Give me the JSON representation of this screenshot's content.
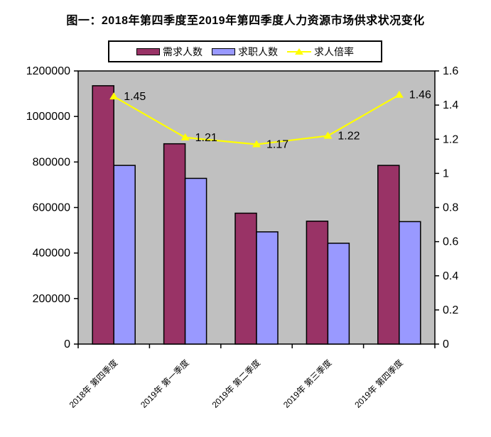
{
  "title": "图一：2018年第四季度至2019年第四季度人力资源市场供求状况变化",
  "chart_data": {
    "type": "bar",
    "combo": "bar+line",
    "title": "图一：2018年第四季度至2019年第四季度人力资源市场供求状况变化",
    "categories": [
      "2018年 第四季度",
      "2019年 第一季度",
      "2019年 第二季度",
      "2019年 第三季度",
      "2019年 第四季度"
    ],
    "series": [
      {
        "key": "demand",
        "name": "需求人数",
        "type": "bar",
        "axis": "left",
        "color": "#993366",
        "values": [
          1135000,
          880000,
          575000,
          540000,
          785000
        ]
      },
      {
        "key": "job-seekers",
        "name": "求职人数",
        "type": "bar",
        "axis": "left",
        "color": "#9999FF",
        "values": [
          785000,
          728000,
          493000,
          443000,
          538000
        ]
      },
      {
        "key": "ratio",
        "name": "求人倍率",
        "type": "line",
        "axis": "right",
        "color": "#FFFF00",
        "values": [
          1.45,
          1.21,
          1.17,
          1.22,
          1.46
        ],
        "point_labels": [
          "1.45",
          "1.21",
          "1.17",
          "1.22",
          "1.46"
        ]
      }
    ],
    "left_axis": {
      "min": 0,
      "max": 1200000,
      "step": 200000,
      "tick_labels": [
        "0",
        "200000",
        "400000",
        "600000",
        "800000",
        "1000000",
        "1200000"
      ]
    },
    "right_axis": {
      "min": 0,
      "max": 1.6,
      "step": 0.2,
      "tick_labels": [
        "0",
        "0.2",
        "0.4",
        "0.6",
        "0.8",
        "1",
        "1.2",
        "1.4",
        "1.6"
      ]
    },
    "plot_background": "#C0C0C0",
    "axis_line_color": "#000000",
    "text_color": "#000000",
    "grid": false,
    "legend_position": "top-center"
  }
}
